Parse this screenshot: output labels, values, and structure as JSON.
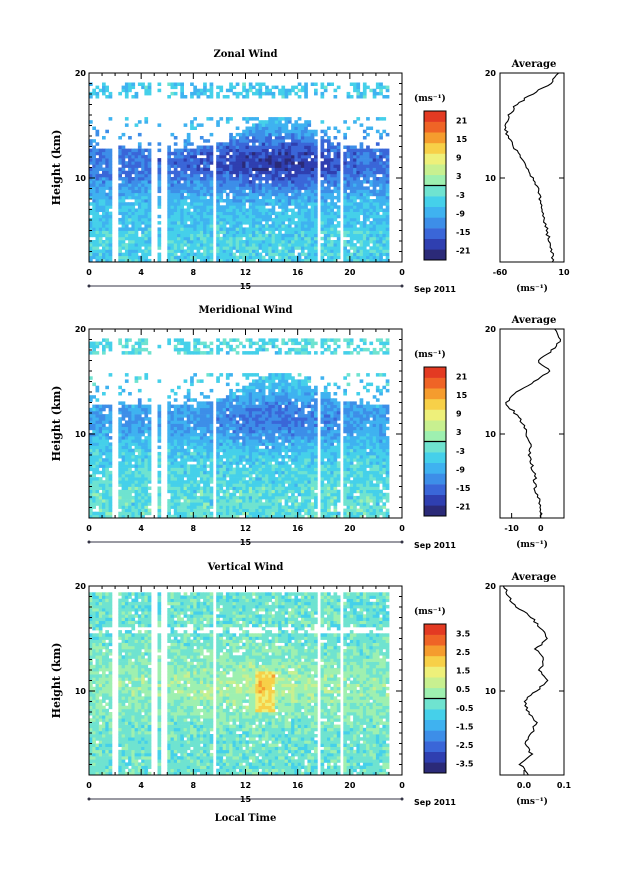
{
  "chart_data": [
    {
      "type": "heatmap",
      "title": "Zonal Wind",
      "ylabel": "Height (km)",
      "xlabel": "",
      "x_ticks": [
        "0",
        "4",
        "8",
        "12",
        "16",
        "20",
        "0"
      ],
      "y_ticks": [
        "10",
        "20"
      ],
      "xlim": [
        0,
        24
      ],
      "ylim": [
        2,
        20
      ],
      "date_label": "15",
      "date_suffix": "Sep 2011",
      "colorbar": {
        "unit": "(ms⁻¹)",
        "ticks": [
          "21",
          "15",
          "9",
          "3",
          "-3",
          "-9",
          "-15",
          "-21"
        ],
        "range": [
          -24,
          24
        ]
      },
      "pattern": {
        "base": -6,
        "jet_height": 11.5,
        "jet_strength": -14,
        "jet_center_time": 14.5,
        "upper_gap": [
          15.8,
          17.5
        ],
        "top_layer": [
          17.5,
          19
        ]
      },
      "avg_profile": {
        "title": "Average",
        "xlabel": "(ms⁻¹)",
        "x_ticks": [
          "-60",
          "10"
        ],
        "xlim": [
          -60,
          10
        ],
        "y_ticks": [
          "10",
          "20"
        ],
        "heights": [
          2,
          3,
          4,
          5,
          6,
          7,
          8,
          9,
          10,
          11,
          12,
          13,
          14,
          15,
          16,
          17,
          18,
          19,
          20
        ],
        "values": [
          -2,
          -3,
          -6,
          -9,
          -11,
          -13,
          -16,
          -19,
          -24,
          -30,
          -37,
          -45,
          -52,
          -55,
          -50,
          -42,
          -25,
          -5,
          5
        ]
      }
    },
    {
      "type": "heatmap",
      "title": "Meridional Wind",
      "ylabel": "Height (km)",
      "xlabel": "",
      "x_ticks": [
        "0",
        "4",
        "8",
        "12",
        "16",
        "20",
        "0"
      ],
      "y_ticks": [
        "10",
        "20"
      ],
      "xlim": [
        0,
        24
      ],
      "ylim": [
        2,
        20
      ],
      "date_label": "15",
      "date_suffix": "Sep 2011",
      "colorbar": {
        "unit": "(ms⁻¹)",
        "ticks": [
          "21",
          "15",
          "9",
          "3",
          "-3",
          "-9",
          "-15",
          "-21"
        ],
        "range": [
          -24,
          24
        ]
      },
      "pattern": {
        "base": -4,
        "jet_height": 11.5,
        "jet_strength": -10,
        "jet_center_time": 14.5,
        "upper_gap": [
          15.8,
          17.5
        ],
        "top_layer": [
          17.5,
          19
        ]
      },
      "avg_profile": {
        "title": "Average",
        "xlabel": "(ms⁻¹)",
        "x_ticks": [
          "-10",
          "0"
        ],
        "xlim": [
          -14,
          8
        ],
        "y_ticks": [
          "10",
          "20"
        ],
        "heights": [
          2,
          3,
          4,
          5,
          6,
          7,
          8,
          9,
          10,
          11,
          12,
          13,
          14,
          15,
          16,
          17,
          18,
          19,
          20
        ],
        "values": [
          0,
          0,
          -1,
          -2,
          -2,
          -3,
          -4,
          -3,
          -5,
          -6,
          -9,
          -12,
          -8,
          -2,
          3,
          -1,
          4,
          7,
          5
        ]
      }
    },
    {
      "type": "heatmap",
      "title": "Vertical Wind",
      "ylabel": "Height (km)",
      "xlabel": "Local Time",
      "x_ticks": [
        "0",
        "4",
        "8",
        "12",
        "16",
        "20",
        "0"
      ],
      "y_ticks": [
        "10",
        "20"
      ],
      "xlim": [
        0,
        24
      ],
      "ylim": [
        2,
        20
      ],
      "date_label": "15",
      "date_suffix": "Sep 2011",
      "colorbar": {
        "unit": "(ms⁻¹)",
        "ticks": [
          "3.5",
          "2.5",
          "1.5",
          "0.5",
          "-0.5",
          "-1.5",
          "-2.5",
          "-3.5"
        ],
        "range": [
          -4,
          4
        ]
      },
      "pattern": {
        "base": -0.3,
        "jet_height": 10.5,
        "jet_strength": 0.8,
        "jet_center_time": 13.5,
        "upper_gap": [
          15.6,
          16.2
        ],
        "top_layer": [
          16.2,
          19.5
        ]
      },
      "avg_profile": {
        "title": "Average",
        "xlabel": "(ms⁻¹)",
        "x_ticks": [
          "0.0",
          "0.1"
        ],
        "xlim": [
          -0.06,
          0.1
        ],
        "y_ticks": [
          "10",
          "20"
        ],
        "heights": [
          2,
          3,
          4,
          5,
          6,
          7,
          8,
          9,
          10,
          11,
          12,
          13,
          14,
          15,
          16,
          17,
          18,
          19,
          20
        ],
        "values": [
          0.01,
          -0.01,
          0.02,
          0.0,
          0.02,
          0.03,
          0.01,
          0.0,
          0.03,
          0.06,
          0.04,
          0.05,
          0.03,
          0.06,
          0.04,
          0.02,
          -0.02,
          -0.04,
          -0.05
        ]
      }
    }
  ]
}
